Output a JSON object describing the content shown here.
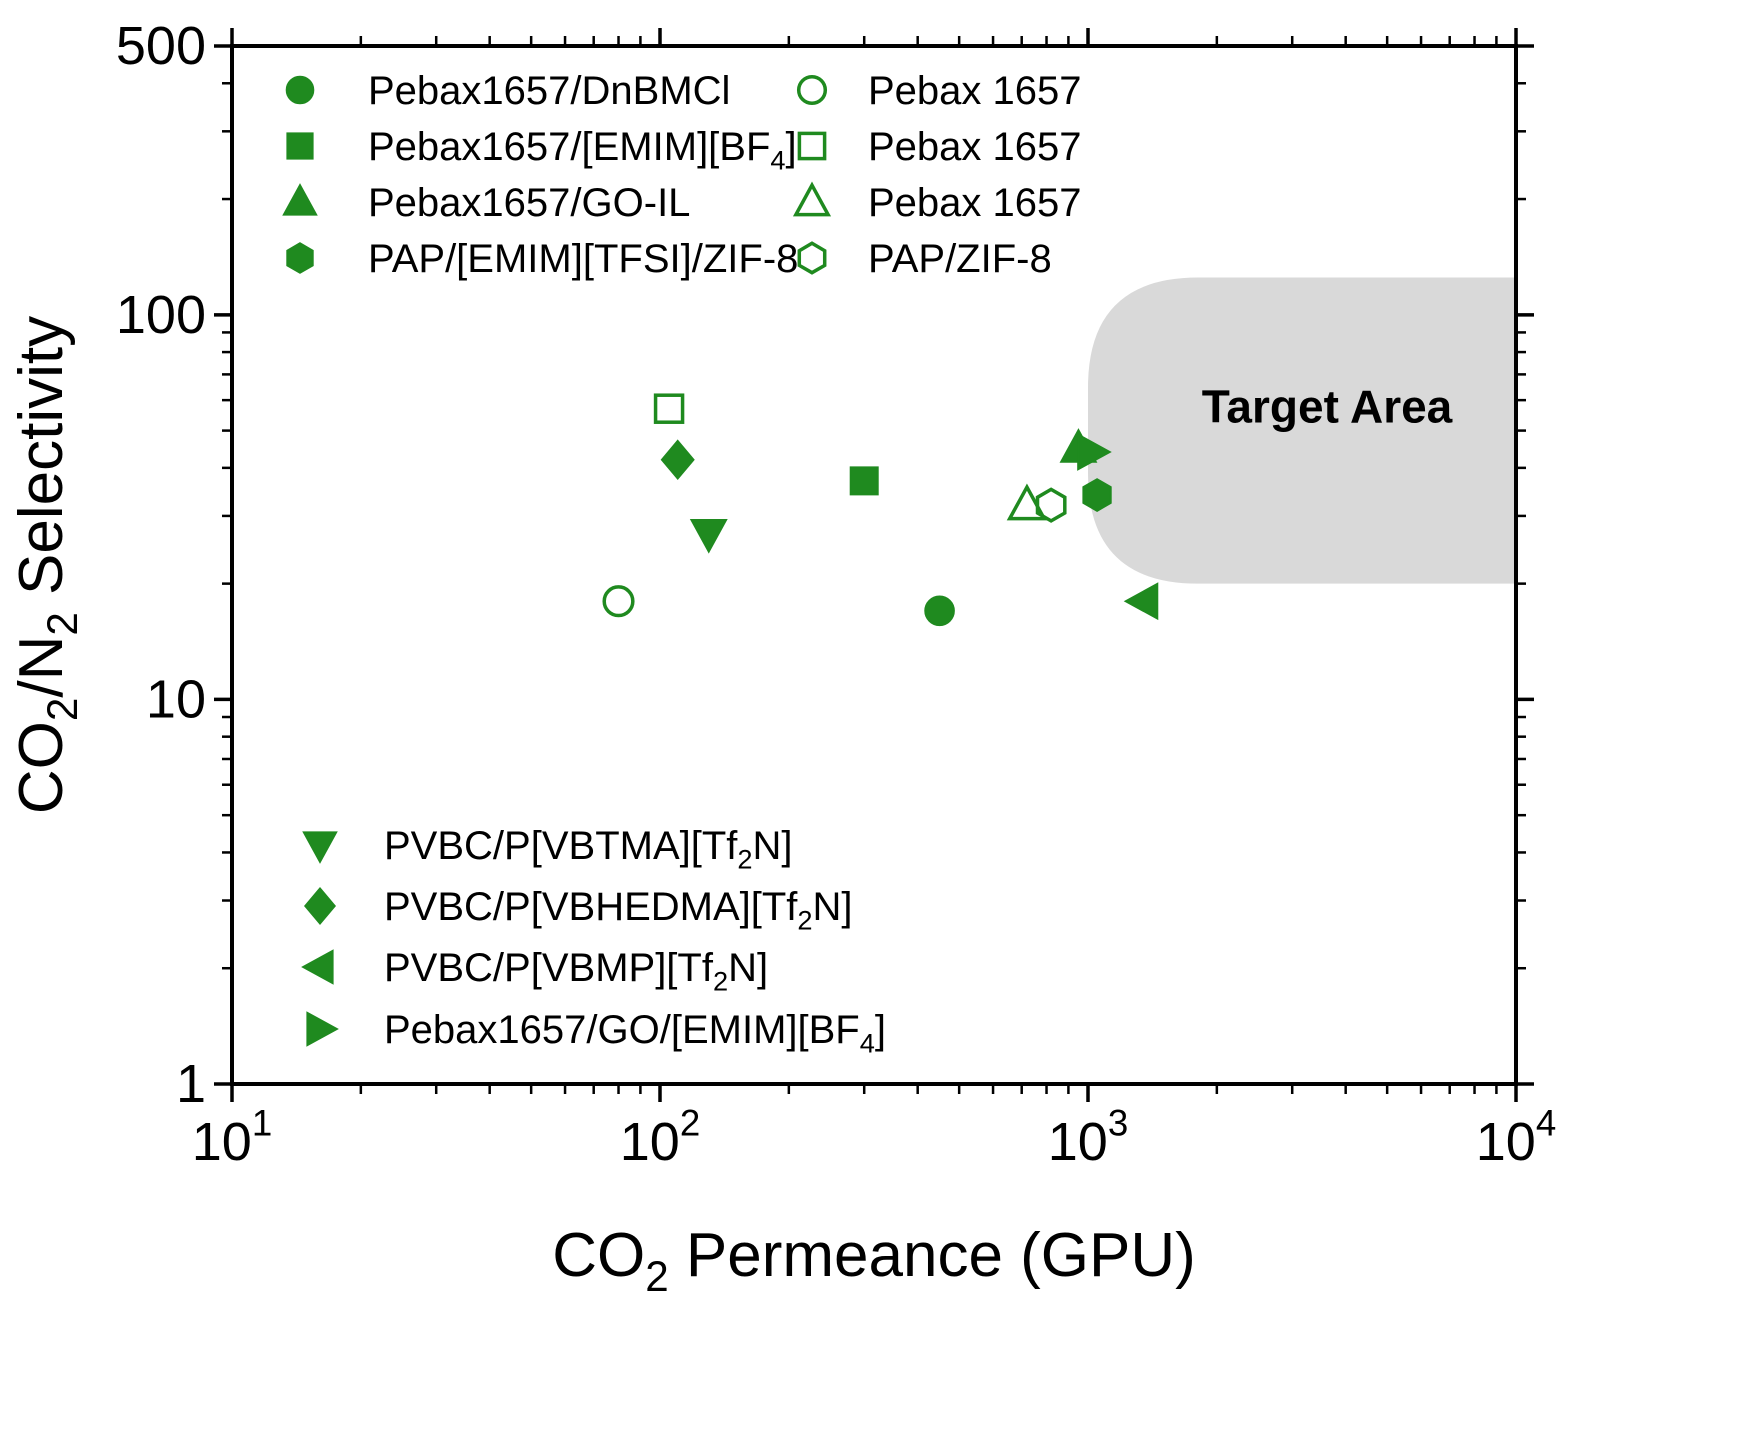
{
  "chart_data": {
    "type": "scatter",
    "title": "",
    "xlabel": "CO~2~ Permeance (GPU)",
    "ylabel": "CO~2~/N~2~ Selectivity",
    "xscale": "log",
    "yscale": "log",
    "xlim": [
      10,
      10000
    ],
    "ylim": [
      1,
      500
    ],
    "grid": false,
    "accent_color": "#1f8a1f",
    "frame_color": "#000000",
    "xticks": [
      {
        "value": 10,
        "label": "10^1^"
      },
      {
        "value": 100,
        "label": "10^2^"
      },
      {
        "value": 1000,
        "label": "10^3^"
      },
      {
        "value": 10000,
        "label": "10^4^"
      }
    ],
    "yticks": [
      {
        "value": 1,
        "label": "1"
      },
      {
        "value": 10,
        "label": "10"
      },
      {
        "value": 100,
        "label": "100"
      },
      {
        "value": 500,
        "label": "500"
      }
    ],
    "target_area": {
      "label": "Target Area",
      "x_start": 1000,
      "x_end": 10000,
      "y_min": 20,
      "y_max": 125,
      "fill": "#d9d9d9",
      "label_color": "#000000"
    },
    "series": [
      {
        "name": "Pebax1657/DnBMCl",
        "marker": "circle",
        "filled": true,
        "points": [
          [
            450,
            17
          ]
        ]
      },
      {
        "name": "Pebax1657/[EMIM][BF~4~]",
        "marker": "square",
        "filled": true,
        "points": [
          [
            300,
            37
          ]
        ]
      },
      {
        "name": "Pebax1657/GO-IL",
        "marker": "triangle-up",
        "filled": true,
        "points": [
          [
            950,
            45
          ]
        ]
      },
      {
        "name": "PAP/[EMIM][TFSI]/ZIF-8",
        "marker": "hexagon",
        "filled": true,
        "points": [
          [
            1050,
            34
          ]
        ]
      },
      {
        "name": "Pebax 1657",
        "marker": "circle",
        "filled": false,
        "points": [
          [
            80,
            18
          ]
        ]
      },
      {
        "name": "Pebax 1657",
        "marker": "square",
        "filled": false,
        "points": [
          [
            105,
            57
          ]
        ]
      },
      {
        "name": "Pebax 1657",
        "marker": "triangle-up",
        "filled": false,
        "points": [
          [
            720,
            32
          ]
        ]
      },
      {
        "name": "PAP/ZIF-8",
        "marker": "hexagon",
        "filled": false,
        "points": [
          [
            820,
            32
          ]
        ]
      },
      {
        "name": "PVBC/P[VBTMA][Tf~2~N]",
        "marker": "triangle-down",
        "filled": true,
        "points": [
          [
            130,
            27
          ]
        ]
      },
      {
        "name": "PVBC/P[VBHEDMA][Tf~2~N]",
        "marker": "diamond",
        "filled": true,
        "points": [
          [
            110,
            42
          ]
        ]
      },
      {
        "name": "PVBC/P[VBMP][Tf~2~N]",
        "marker": "triangle-left",
        "filled": true,
        "points": [
          [
            1350,
            18
          ]
        ]
      },
      {
        "name": "Pebax1657/GO/[EMIM][BF~4~]",
        "marker": "triangle-right",
        "filled": true,
        "points": [
          [
            1020,
            44
          ]
        ]
      }
    ],
    "legend_groups": [
      {
        "id": "top-left",
        "items": [
          {
            "marker": "circle",
            "filled": true,
            "label": "Pebax1657/DnBMCl"
          },
          {
            "marker": "square",
            "filled": true,
            "label": "Pebax1657/[EMIM][BF~4~]"
          },
          {
            "marker": "triangle-up",
            "filled": true,
            "label": "Pebax1657/GO-IL"
          },
          {
            "marker": "hexagon",
            "filled": true,
            "label": "PAP/[EMIM][TFSI]/ZIF-8"
          }
        ]
      },
      {
        "id": "top-right",
        "items": [
          {
            "marker": "circle",
            "filled": false,
            "label": "Pebax 1657"
          },
          {
            "marker": "square",
            "filled": false,
            "label": "Pebax 1657"
          },
          {
            "marker": "triangle-up",
            "filled": false,
            "label": "Pebax 1657"
          },
          {
            "marker": "hexagon",
            "filled": false,
            "label": "PAP/ZIF-8"
          }
        ]
      },
      {
        "id": "bottom-left",
        "items": [
          {
            "marker": "triangle-down",
            "filled": true,
            "label": "PVBC/P[VBTMA][Tf~2~N]"
          },
          {
            "marker": "diamond",
            "filled": true,
            "label": "PVBC/P[VBHEDMA][Tf~2~N]"
          },
          {
            "marker": "triangle-left",
            "filled": true,
            "label": "PVBC/P[VBMP][Tf~2~N]"
          },
          {
            "marker": "triangle-right",
            "filled": true,
            "label": "Pebax1657/GO/[EMIM][BF~4~]"
          }
        ]
      }
    ]
  }
}
